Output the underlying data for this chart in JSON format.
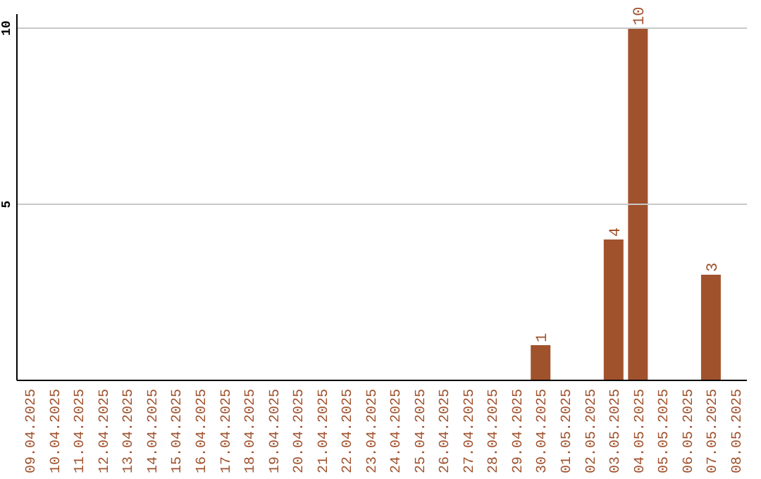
{
  "chart_data": {
    "type": "bar",
    "categories": [
      "09.04.2025",
      "10.04.2025",
      "11.04.2025",
      "12.04.2025",
      "13.04.2025",
      "14.04.2025",
      "15.04.2025",
      "16.04.2025",
      "17.04.2025",
      "18.04.2025",
      "19.04.2025",
      "20.04.2025",
      "21.04.2025",
      "22.04.2025",
      "23.04.2025",
      "24.04.2025",
      "25.04.2025",
      "26.04.2025",
      "27.04.2025",
      "28.04.2025",
      "29.04.2025",
      "30.04.2025",
      "01.05.2025",
      "02.05.2025",
      "03.05.2025",
      "04.05.2025",
      "05.05.2025",
      "06.05.2025",
      "07.05.2025",
      "08.05.2025"
    ],
    "values": [
      0,
      0,
      0,
      0,
      0,
      0,
      0,
      0,
      0,
      0,
      0,
      0,
      0,
      0,
      0,
      0,
      0,
      0,
      0,
      0,
      0,
      1,
      0,
      0,
      4,
      10,
      0,
      0,
      3,
      0
    ],
    "value_labels": [
      null,
      null,
      null,
      null,
      null,
      null,
      null,
      null,
      null,
      null,
      null,
      null,
      null,
      null,
      null,
      null,
      null,
      null,
      null,
      null,
      null,
      "1",
      null,
      null,
      "4",
      "10",
      null,
      null,
      "3",
      null
    ],
    "color": "#a0522d",
    "ylim": [
      0,
      10.4
    ],
    "yticks": [
      5,
      10
    ],
    "grid": "y"
  }
}
